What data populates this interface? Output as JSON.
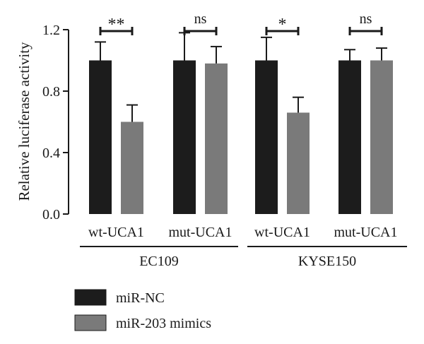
{
  "chart_data": {
    "type": "bar",
    "ylabel": "Relative luciferase activity",
    "ylim": [
      0,
      1.2
    ],
    "yticks": [
      "0.0",
      "0.4",
      "0.8",
      "1.2"
    ],
    "groups": [
      {
        "label": "EC109",
        "categories": [
          "wt-UCA1",
          "mut-UCA1"
        ]
      },
      {
        "label": "KYSE150",
        "categories": [
          "wt-UCA1",
          "mut-UCA1"
        ]
      }
    ],
    "categories": [
      "wt-UCA1",
      "mut-UCA1",
      "wt-UCA1",
      "mut-UCA1"
    ],
    "series": [
      {
        "name": "miR-NC",
        "color": "#1c1c1c",
        "values": [
          1.0,
          1.0,
          1.0,
          1.0
        ],
        "errors": [
          0.12,
          0.18,
          0.15,
          0.07
        ]
      },
      {
        "name": "miR-203 mimics",
        "color": "#7a7a7a",
        "values": [
          0.6,
          0.98,
          0.66,
          1.0
        ],
        "errors": [
          0.11,
          0.11,
          0.1,
          0.08
        ]
      }
    ],
    "significance": [
      "**",
      "ns",
      "*",
      "ns"
    ],
    "legend_position": "bottom-left",
    "grid": false
  }
}
